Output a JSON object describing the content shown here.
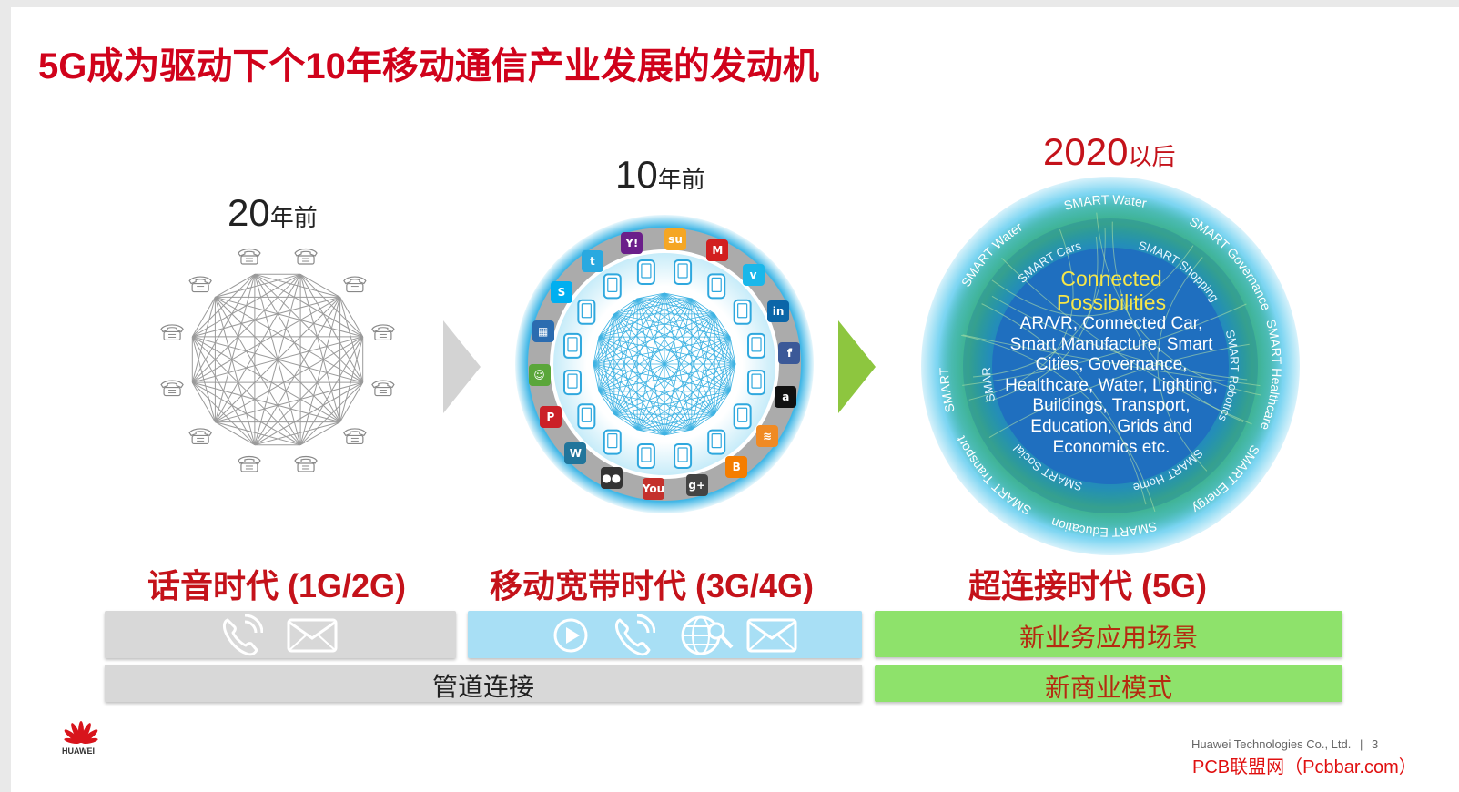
{
  "title": "5G成为驱动下个10年移动通信产业发展的发动机",
  "eras": [
    {
      "period_number": "20",
      "period_suffix": "年前",
      "name": "话音时代 (1G/2G)",
      "bar_icons": [
        "phone-call-icon",
        "mail-icon"
      ]
    },
    {
      "period_number": "10",
      "period_suffix": "年前",
      "name": "移动宽带时代 (3G/4G)",
      "bar_icons": [
        "play-icon",
        "phone-call-icon",
        "web-search-icon",
        "mail-icon"
      ]
    },
    {
      "period_number": "2020",
      "period_suffix": "以后",
      "name": "超连接时代 (5G)"
    }
  ],
  "pipe_label": "管道连接",
  "new_scenarios_label": "新业务应用场景",
  "new_business_label": "新商业模式",
  "connected": {
    "heading_line1": "Connected",
    "heading_line2": "Possibilities",
    "lines": [
      "AR/VR, Connected Car,",
      "Smart Manufacture, Smart",
      "Cities, Governance,",
      "Healthcare, Water, Lighting,",
      "Buildings, Transport,",
      "Education, Grids and",
      "Economics etc."
    ]
  },
  "ring_outer": [
    "SMART Energy",
    "SMART Education",
    "SMART Transport",
    "SMART Lighting",
    "SMART Water",
    "SMART Water",
    "SMART Governance",
    "SMART Healthcare"
  ],
  "ring_inner": [
    "SMART Home",
    "SMART Social",
    "SMART Entertainment",
    "SMART Cars",
    "SMART Shopping",
    "SMART Robotics"
  ],
  "app_icons": [
    {
      "name": "yahoo-icon",
      "glyph": "Y!",
      "color": "#6b1f8a"
    },
    {
      "name": "stumbleupon-icon",
      "glyph": "su",
      "color": "#f5a623"
    },
    {
      "name": "meetup-icon",
      "glyph": "M",
      "color": "#d21f1f"
    },
    {
      "name": "vimeo-icon",
      "glyph": "v",
      "color": "#1ab7ea"
    },
    {
      "name": "linkedin-icon",
      "glyph": "in",
      "color": "#0b66a8"
    },
    {
      "name": "facebook-icon",
      "glyph": "f",
      "color": "#3b5998"
    },
    {
      "name": "amazon-icon",
      "glyph": "a",
      "color": "#111111"
    },
    {
      "name": "rss-icon",
      "glyph": "≋",
      "color": "#f08a24"
    },
    {
      "name": "blogger-icon",
      "glyph": "B",
      "color": "#f57d00"
    },
    {
      "name": "google-plus-icon",
      "glyph": "g+",
      "color": "#444444"
    },
    {
      "name": "youtube-icon",
      "glyph": "You",
      "color": "#c4302b"
    },
    {
      "name": "flickr-icon",
      "glyph": "●●",
      "color": "#333333"
    },
    {
      "name": "wordpress-icon",
      "glyph": "W",
      "color": "#21759b"
    },
    {
      "name": "pinterest-icon",
      "glyph": "P",
      "color": "#cb2027"
    },
    {
      "name": "chat-icon",
      "glyph": "☺",
      "color": "#5aa63a"
    },
    {
      "name": "delicious-icon",
      "glyph": "▦",
      "color": "#2b6cb0"
    },
    {
      "name": "skype-icon",
      "glyph": "S",
      "color": "#00aff0"
    },
    {
      "name": "twitter-icon",
      "glyph": "t",
      "color": "#2aa9e0"
    }
  ],
  "footer": {
    "logo_text": "HUAWEI",
    "company": "Huawei Technologies Co., Ltd.",
    "separator": "|",
    "page": "3",
    "watermark": "PCB联盟网（Pcbbar.com）"
  },
  "colors": {
    "title_red": "#d0021b",
    "grey_bar": "#d8d8d8",
    "blue_bar": "#a8dff5",
    "green_bar": "#8ee26b",
    "arrow_grey": "#d3d3d3",
    "arrow_green": "#8dc63f"
  }
}
